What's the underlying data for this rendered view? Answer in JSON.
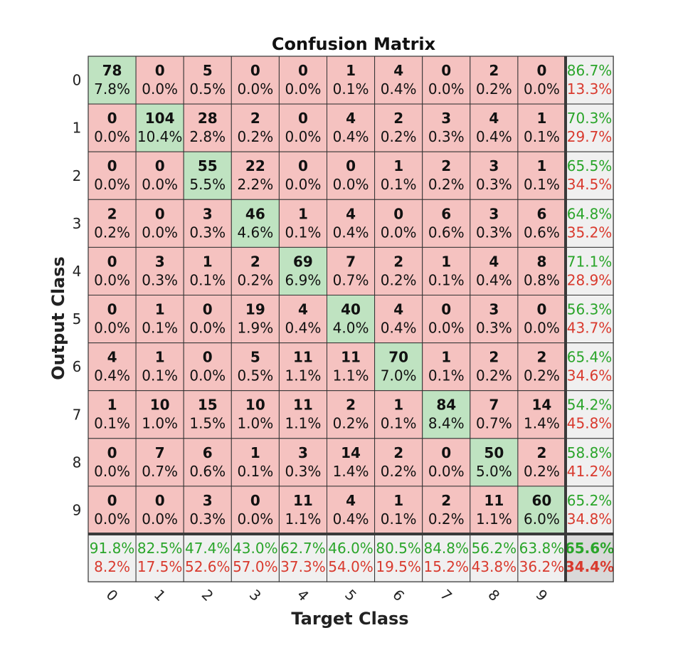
{
  "chart_data": {
    "type": "heatmap",
    "title": "Confusion Matrix",
    "xlabel": "Target Class",
    "ylabel": "Output Class",
    "row_labels": [
      "0",
      "1",
      "2",
      "3",
      "4",
      "5",
      "6",
      "7",
      "8",
      "9"
    ],
    "col_labels": [
      "0",
      "1",
      "2",
      "3",
      "4",
      "5",
      "6",
      "7",
      "8",
      "9"
    ],
    "counts": [
      [
        78,
        0,
        5,
        0,
        0,
        1,
        4,
        0,
        2,
        0
      ],
      [
        0,
        104,
        28,
        2,
        0,
        4,
        2,
        3,
        4,
        1
      ],
      [
        0,
        0,
        55,
        22,
        0,
        0,
        1,
        2,
        3,
        1
      ],
      [
        2,
        0,
        3,
        46,
        1,
        4,
        0,
        6,
        3,
        6
      ],
      [
        0,
        3,
        1,
        2,
        69,
        7,
        2,
        1,
        4,
        8
      ],
      [
        0,
        1,
        0,
        19,
        4,
        40,
        4,
        0,
        3,
        0
      ],
      [
        4,
        1,
        0,
        5,
        11,
        11,
        70,
        1,
        2,
        2
      ],
      [
        1,
        10,
        15,
        10,
        11,
        2,
        1,
        84,
        7,
        14
      ],
      [
        0,
        7,
        6,
        1,
        3,
        14,
        2,
        0,
        50,
        2
      ],
      [
        0,
        0,
        3,
        0,
        11,
        4,
        1,
        2,
        11,
        60
      ]
    ],
    "percents": [
      [
        "7.8%",
        "0.0%",
        "0.5%",
        "0.0%",
        "0.0%",
        "0.1%",
        "0.4%",
        "0.0%",
        "0.2%",
        "0.0%"
      ],
      [
        "0.0%",
        "10.4%",
        "2.8%",
        "0.2%",
        "0.0%",
        "0.4%",
        "0.2%",
        "0.3%",
        "0.4%",
        "0.1%"
      ],
      [
        "0.0%",
        "0.0%",
        "5.5%",
        "2.2%",
        "0.0%",
        "0.0%",
        "0.1%",
        "0.2%",
        "0.3%",
        "0.1%"
      ],
      [
        "0.2%",
        "0.0%",
        "0.3%",
        "4.6%",
        "0.1%",
        "0.4%",
        "0.0%",
        "0.6%",
        "0.3%",
        "0.6%"
      ],
      [
        "0.0%",
        "0.3%",
        "0.1%",
        "0.2%",
        "6.9%",
        "0.7%",
        "0.2%",
        "0.1%",
        "0.4%",
        "0.8%"
      ],
      [
        "0.0%",
        "0.1%",
        "0.0%",
        "1.9%",
        "0.4%",
        "4.0%",
        "0.4%",
        "0.0%",
        "0.3%",
        "0.0%"
      ],
      [
        "0.4%",
        "0.1%",
        "0.0%",
        "0.5%",
        "1.1%",
        "1.1%",
        "7.0%",
        "0.1%",
        "0.2%",
        "0.2%"
      ],
      [
        "0.1%",
        "1.0%",
        "1.5%",
        "1.0%",
        "1.1%",
        "0.2%",
        "0.1%",
        "8.4%",
        "0.7%",
        "1.4%"
      ],
      [
        "0.0%",
        "0.7%",
        "0.6%",
        "0.1%",
        "0.3%",
        "1.4%",
        "0.2%",
        "0.0%",
        "5.0%",
        "0.2%"
      ],
      [
        "0.0%",
        "0.0%",
        "0.3%",
        "0.0%",
        "1.1%",
        "0.4%",
        "0.1%",
        "0.2%",
        "1.1%",
        "6.0%"
      ]
    ],
    "row_summary": [
      {
        "correct": "86.7%",
        "wrong": "13.3%"
      },
      {
        "correct": "70.3%",
        "wrong": "29.7%"
      },
      {
        "correct": "65.5%",
        "wrong": "34.5%"
      },
      {
        "correct": "64.8%",
        "wrong": "35.2%"
      },
      {
        "correct": "71.1%",
        "wrong": "28.9%"
      },
      {
        "correct": "56.3%",
        "wrong": "43.7%"
      },
      {
        "correct": "65.4%",
        "wrong": "34.6%"
      },
      {
        "correct": "54.2%",
        "wrong": "45.8%"
      },
      {
        "correct": "58.8%",
        "wrong": "41.2%"
      },
      {
        "correct": "65.2%",
        "wrong": "34.8%"
      }
    ],
    "col_summary": [
      {
        "correct": "91.8%",
        "wrong": "8.2%"
      },
      {
        "correct": "82.5%",
        "wrong": "17.5%"
      },
      {
        "correct": "47.4%",
        "wrong": "52.6%"
      },
      {
        "correct": "43.0%",
        "wrong": "57.0%"
      },
      {
        "correct": "62.7%",
        "wrong": "37.3%"
      },
      {
        "correct": "46.0%",
        "wrong": "54.0%"
      },
      {
        "correct": "80.5%",
        "wrong": "19.5%"
      },
      {
        "correct": "84.8%",
        "wrong": "15.2%"
      },
      {
        "correct": "56.2%",
        "wrong": "43.8%"
      },
      {
        "correct": "63.8%",
        "wrong": "36.2%"
      }
    ],
    "overall": {
      "correct": "65.6%",
      "wrong": "34.4%"
    },
    "colors": {
      "correct_cell": "#bfe3c1",
      "incorrect_cell": "#f5c2c0",
      "summary_cell": "#f0f0f0",
      "overall_cell": "#d9d9d9",
      "correct_text": "#2aa52a",
      "wrong_text": "#d93a2e",
      "grid": "#333333"
    }
  }
}
